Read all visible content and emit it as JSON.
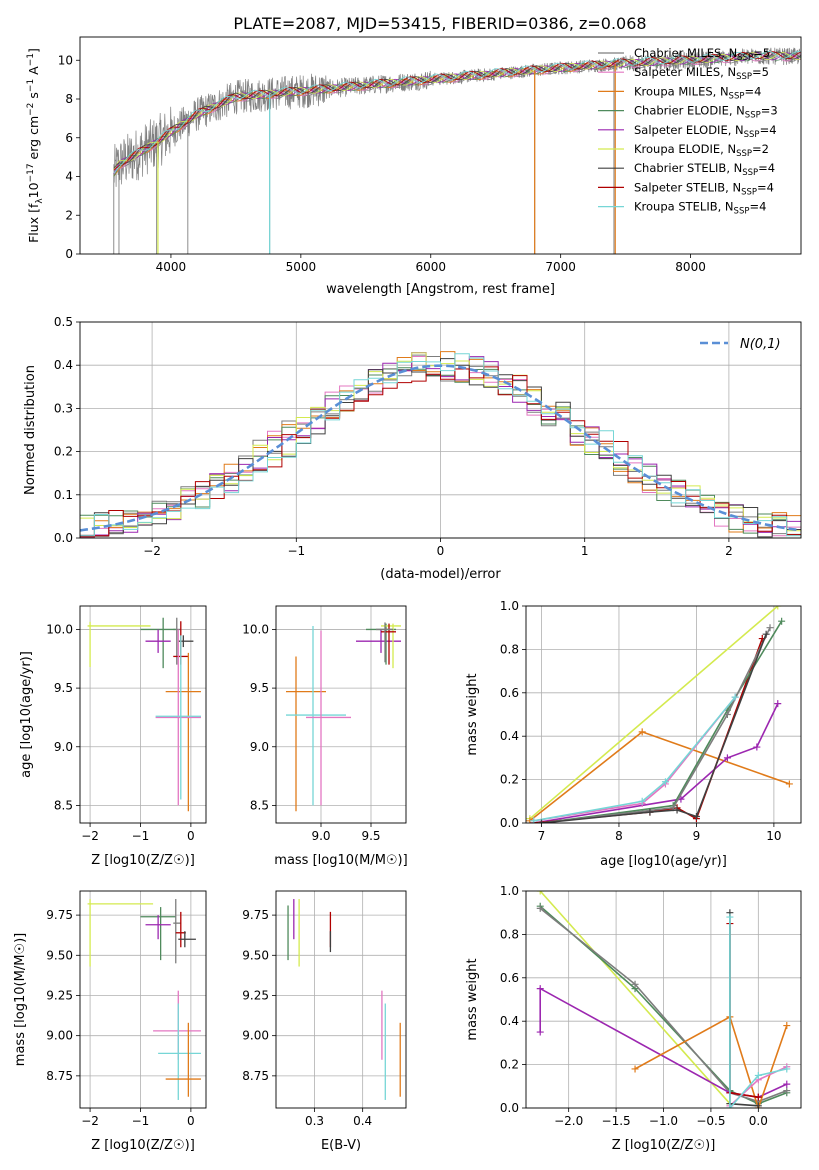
{
  "figure_title": "PLATE=2087, MJD=53415, FIBERID=0386, z=0.068",
  "models": [
    {
      "name": "Chabrier MILES",
      "nssp": "5",
      "color": "#7d7d7d"
    },
    {
      "name": "Salpeter MILES",
      "nssp": "5",
      "color": "#e377c2"
    },
    {
      "name": "Kroupa MILES",
      "nssp": "4",
      "color": "#e07b1a"
    },
    {
      "name": "Chabrier ELODIE",
      "nssp": "3",
      "color": "#4f8a5c"
    },
    {
      "name": "Salpeter ELODIE",
      "nssp": "4",
      "color": "#9c27b0"
    },
    {
      "name": "Kroupa ELODIE",
      "nssp": "2",
      "color": "#d4ea4f"
    },
    {
      "name": "Chabrier STELIB",
      "nssp": "4",
      "color": "#404040"
    },
    {
      "name": "Salpeter STELIB",
      "nssp": "4",
      "color": "#b00000"
    },
    {
      "name": "Kroupa STELIB",
      "nssp": "4",
      "color": "#76d6d6"
    }
  ],
  "chart_data": [
    {
      "id": "spectrum",
      "type": "line",
      "xlabel": "wavelength [Angstrom, rest frame]",
      "ylabel": "Flux [f_λ 10^-17 erg cm^-2 s^-1 A^-1]",
      "xlim": [
        3300,
        8850
      ],
      "ylim": [
        0,
        11.2
      ],
      "xticks": [
        4000,
        5000,
        6000,
        7000,
        8000
      ],
      "yticks": [
        0,
        2,
        4,
        6,
        8,
        10
      ],
      "data_color": "#808080",
      "continuum": {
        "x": [
          3550,
          3600,
          3700,
          3800,
          3900,
          4000,
          4200,
          4500,
          5000,
          5500,
          6000,
          6500,
          7000,
          7400,
          8000,
          8500
        ],
        "y": [
          4.1,
          4.6,
          5.0,
          5.4,
          5.8,
          6.3,
          7.2,
          8.1,
          8.4,
          8.7,
          9.0,
          9.3,
          9.6,
          9.8,
          10.0,
          10.2
        ]
      },
      "grid": false,
      "legend": "upper right"
    },
    {
      "id": "residual-hist",
      "type": "histogram",
      "xlabel": "(data-model)/error",
      "ylabel": "Normed distribution",
      "xlim": [
        -2.5,
        2.5
      ],
      "ylim": [
        0,
        0.5
      ],
      "xticks": [
        -2,
        -1,
        0,
        1,
        2
      ],
      "yticks": [
        0.0,
        0.1,
        0.2,
        0.3,
        0.4,
        0.5
      ],
      "reference": {
        "label": "N(0,1)",
        "color": "#5a8fd6",
        "mu": 0,
        "sigma": 1
      },
      "grid": true
    },
    {
      "id": "age-vs-Z",
      "type": "errorbar",
      "xlabel": "Z [log10(Z/Z☉)]",
      "ylabel": "age [log10(age/yr)]",
      "xlim": [
        -2.2,
        0.3
      ],
      "ylim": [
        8.35,
        10.2
      ],
      "xticks": [
        -2,
        -1,
        0
      ],
      "yticks": [
        8.5,
        9.0,
        9.5,
        10.0
      ],
      "points": [
        {
          "model": 5,
          "x": -2.0,
          "xerr": 0.0,
          "y": 10.03,
          "yerr": 0.35,
          "cx": [
            -2.05,
            -0.8
          ]
        },
        {
          "model": 0,
          "x": -0.28,
          "y": 10.0,
          "cx": [
            -0.35,
            -0.2
          ],
          "cy": [
            9.7,
            10.1
          ]
        },
        {
          "model": 3,
          "x": -0.55,
          "y": 10.0,
          "cx": [
            -1.0,
            -0.3
          ],
          "cy": [
            9.67,
            10.1
          ]
        },
        {
          "model": 4,
          "x": -0.65,
          "y": 9.9,
          "cx": [
            -0.9,
            -0.4
          ],
          "cy": [
            9.8,
            10.0
          ]
        },
        {
          "model": 6,
          "x": -0.15,
          "y": 9.9,
          "cx": [
            -0.25,
            0.05
          ],
          "cy": [
            9.85,
            9.95
          ]
        },
        {
          "model": 7,
          "x": -0.2,
          "y": 9.77,
          "cx": [
            -0.35,
            -0.05
          ],
          "cy": [
            9.7,
            10.07
          ]
        },
        {
          "model": 2,
          "x": -0.05,
          "y": 9.47,
          "cx": [
            -0.5,
            0.2
          ],
          "cy": [
            8.45,
            9.8
          ]
        },
        {
          "model": 1,
          "x": -0.25,
          "y": 9.25,
          "cx": [
            -0.7,
            0.2
          ],
          "cy": [
            8.5,
            10.0
          ]
        },
        {
          "model": 8,
          "x": -0.2,
          "y": 9.26,
          "cx": [
            -0.7,
            0.2
          ],
          "cy": [
            8.55,
            9.95
          ]
        }
      ],
      "grid": true
    },
    {
      "id": "age-vs-mass",
      "type": "errorbar",
      "xlabel": "mass [log10(M/M☉)]",
      "ylabel": "",
      "xlim": [
        8.55,
        9.85
      ],
      "ylim": [
        8.35,
        10.2
      ],
      "xticks": [
        9.0,
        9.5
      ],
      "yticks": [
        8.5,
        9.0,
        9.5,
        10.0
      ],
      "points": [
        {
          "model": 2,
          "x": 8.75,
          "y": 9.47,
          "cx": [
            8.65,
            9.05
          ],
          "cy": [
            8.45,
            9.77
          ]
        },
        {
          "model": 8,
          "x": 8.92,
          "y": 9.27,
          "cx": [
            8.65,
            9.25
          ],
          "cy": [
            8.5,
            10.03
          ]
        },
        {
          "model": 1,
          "x": 9.0,
          "y": 9.25,
          "cx": [
            8.85,
            9.3
          ],
          "cy": [
            8.5,
            9.99
          ]
        },
        {
          "model": 4,
          "x": 9.6,
          "y": 9.9,
          "cx": [
            9.35,
            9.8
          ],
          "cy": [
            9.8,
            10.0
          ]
        },
        {
          "model": 3,
          "x": 9.65,
          "y": 10.0,
          "cx": [
            9.45,
            9.75
          ],
          "cy": [
            9.7,
            10.05
          ]
        },
        {
          "model": 5,
          "x": 9.72,
          "y": 10.03,
          "cx": [
            9.6,
            9.8
          ],
          "cy": [
            9.67,
            10.05
          ]
        },
        {
          "model": 7,
          "x": 9.68,
          "y": 9.98,
          "cx": [
            9.6,
            9.75
          ],
          "cy": [
            9.7,
            10.05
          ]
        },
        {
          "model": 0,
          "x": 9.64,
          "y": 10.0,
          "cx": [
            9.55,
            9.72
          ],
          "cy": [
            9.72,
            10.06
          ]
        }
      ],
      "grid": true
    },
    {
      "id": "mass-weight-vs-age",
      "type": "line",
      "xlabel": "age [log10(age/yr)]",
      "ylabel": "mass weight",
      "xlim": [
        6.8,
        10.35
      ],
      "ylim": [
        0,
        1
      ],
      "xticks": [
        7,
        8,
        9,
        10
      ],
      "yticks": [
        0.0,
        0.2,
        0.4,
        0.6,
        0.8,
        1.0
      ],
      "series": [
        {
          "model": 5,
          "x": [
            6.85,
            10.05
          ],
          "y": [
            0.02,
            1.0
          ]
        },
        {
          "model": 2,
          "x": [
            6.85,
            8.3,
            10.2
          ],
          "y": [
            0.01,
            0.42,
            0.18
          ]
        },
        {
          "model": 4,
          "x": [
            6.9,
            8.8,
            9.4,
            9.78,
            10.05
          ],
          "y": [
            0.0,
            0.11,
            0.3,
            0.35,
            0.55
          ]
        },
        {
          "model": 7,
          "x": [
            6.9,
            8.4,
            8.75,
            9.0,
            9.85
          ],
          "y": [
            0.0,
            0.05,
            0.07,
            0.02,
            0.85
          ]
        },
        {
          "model": 3,
          "x": [
            7.0,
            8.7,
            9.4,
            10.1
          ],
          "y": [
            0.0,
            0.08,
            0.52,
            0.93
          ]
        },
        {
          "model": 0,
          "x": [
            7.0,
            8.7,
            9.4,
            9.95
          ],
          "y": [
            0.0,
            0.07,
            0.5,
            0.9
          ]
        },
        {
          "model": 1,
          "x": [
            6.9,
            8.3,
            8.6,
            9.5
          ],
          "y": [
            0.01,
            0.09,
            0.18,
            0.58
          ]
        },
        {
          "model": 8,
          "x": [
            6.9,
            8.3,
            8.6,
            9.5
          ],
          "y": [
            0.01,
            0.1,
            0.19,
            0.58
          ]
        },
        {
          "model": 6,
          "x": [
            7.0,
            8.4,
            8.75,
            9.0,
            9.9
          ],
          "y": [
            0.0,
            0.05,
            0.06,
            0.03,
            0.87
          ]
        }
      ],
      "grid": true
    },
    {
      "id": "mass-vs-Z",
      "type": "errorbar",
      "xlabel": "Z [log10(Z/Z☉)]",
      "ylabel": "mass [log10(M/M☉)]",
      "xlim": [
        -2.2,
        0.3
      ],
      "ylim": [
        8.55,
        9.9
      ],
      "xticks": [
        -2,
        -1,
        0
      ],
      "yticks": [
        8.75,
        9.0,
        9.25,
        9.5,
        9.75
      ],
      "points": [
        {
          "model": 5,
          "x": -2.0,
          "y": 9.82,
          "cx": [
            -2.05,
            -0.75
          ],
          "cy": [
            9.43,
            9.85
          ]
        },
        {
          "model": 3,
          "x": -0.6,
          "y": 9.74,
          "cx": [
            -1.0,
            -0.3
          ],
          "cy": [
            9.47,
            9.8
          ]
        },
        {
          "model": 4,
          "x": -0.65,
          "y": 9.69,
          "cx": [
            -0.9,
            -0.4
          ],
          "cy": [
            9.6,
            9.75
          ]
        },
        {
          "model": 0,
          "x": -0.3,
          "y": 9.7,
          "cx": [
            -0.35,
            -0.2
          ],
          "cy": [
            9.45,
            9.85
          ]
        },
        {
          "model": 7,
          "x": -0.2,
          "y": 9.64,
          "cx": [
            -0.3,
            -0.1
          ],
          "cy": [
            9.55,
            9.77
          ]
        },
        {
          "model": 6,
          "x": -0.12,
          "y": 9.6,
          "cx": [
            -0.25,
            0.1
          ],
          "cy": [
            9.55,
            9.65
          ]
        },
        {
          "model": 1,
          "x": -0.25,
          "y": 9.03,
          "cx": [
            -0.75,
            0.2
          ],
          "cy": [
            8.85,
            9.28
          ]
        },
        {
          "model": 8,
          "x": -0.25,
          "y": 8.89,
          "cx": [
            -0.65,
            0.2
          ],
          "cy": [
            8.6,
            9.2
          ]
        },
        {
          "model": 2,
          "x": -0.05,
          "y": 8.73,
          "cx": [
            -0.5,
            0.2
          ],
          "cy": [
            8.62,
            9.08
          ]
        }
      ],
      "grid": true
    },
    {
      "id": "mass-vs-ebv",
      "type": "errorbar",
      "xlabel": "E(B-V)",
      "ylabel": "",
      "xlim": [
        0.22,
        0.49
      ],
      "ylim": [
        8.55,
        9.9
      ],
      "xticks": [
        0.3,
        0.4
      ],
      "yticks": [
        8.75,
        9.0,
        9.25,
        9.5,
        9.75
      ],
      "points": [
        {
          "model": 3,
          "x": 0.245,
          "cy": [
            9.47,
            9.81
          ]
        },
        {
          "model": 4,
          "x": 0.257,
          "cy": [
            9.6,
            9.85
          ]
        },
        {
          "model": 5,
          "x": 0.268,
          "cy": [
            9.43,
            9.85
          ]
        },
        {
          "model": 7,
          "x": 0.333,
          "cy": [
            9.55,
            9.77
          ]
        },
        {
          "model": 6,
          "x": 0.333,
          "cy": [
            9.52,
            9.65
          ]
        },
        {
          "model": 1,
          "x": 0.44,
          "cy": [
            8.85,
            9.28
          ]
        },
        {
          "model": 8,
          "x": 0.447,
          "cy": [
            8.6,
            9.2
          ]
        },
        {
          "model": 2,
          "x": 0.478,
          "cy": [
            8.62,
            9.08
          ]
        }
      ],
      "grid": true
    },
    {
      "id": "mass-weight-vs-Z",
      "type": "line",
      "xlabel": "Z [log10(Z/Z☉)]",
      "ylabel": "mass weight",
      "xlim": [
        -2.45,
        0.45
      ],
      "ylim": [
        0,
        1
      ],
      "xticks": [
        -2.0,
        -1.5,
        -1.0,
        -0.5,
        0.0
      ],
      "yticks": [
        0.0,
        0.2,
        0.4,
        0.6,
        0.8,
        1.0
      ],
      "series": [
        {
          "model": 5,
          "x": [
            -2.3,
            -0.3
          ],
          "y": [
            1.0,
            0.02
          ]
        },
        {
          "model": 3,
          "x": [
            -2.3,
            -1.3,
            -0.3,
            0.0,
            0.3
          ],
          "y": [
            0.93,
            0.55,
            0.08,
            0.02,
            0.07
          ]
        },
        {
          "model": 0,
          "x": [
            -2.3,
            -1.3,
            -0.3,
            0.0,
            0.3
          ],
          "y": [
            0.92,
            0.57,
            0.07,
            0.03,
            0.08
          ]
        },
        {
          "model": 4,
          "x": [
            -2.3,
            -2.3,
            -0.3,
            0.0,
            0.3
          ],
          "y": [
            0.35,
            0.55,
            0.07,
            0.05,
            0.11
          ]
        },
        {
          "model": 2,
          "x": [
            -1.3,
            -0.3,
            0.0,
            0.3
          ],
          "y": [
            0.18,
            0.42,
            0.0,
            0.38
          ]
        },
        {
          "model": 7,
          "x": [
            -0.3,
            -0.3,
            0.0
          ],
          "y": [
            0.85,
            0.07,
            0.05
          ]
        },
        {
          "model": 1,
          "x": [
            -0.3,
            0.0,
            0.3
          ],
          "y": [
            0.01,
            0.13,
            0.19
          ]
        },
        {
          "model": 6,
          "x": [
            -0.3,
            -0.3,
            0.0
          ],
          "y": [
            0.9,
            0.02,
            0.01
          ]
        },
        {
          "model": 8,
          "x": [
            -0.3,
            -0.3,
            0.0,
            0.3
          ],
          "y": [
            0.88,
            0.0,
            0.15,
            0.18
          ]
        }
      ],
      "grid": true
    }
  ]
}
